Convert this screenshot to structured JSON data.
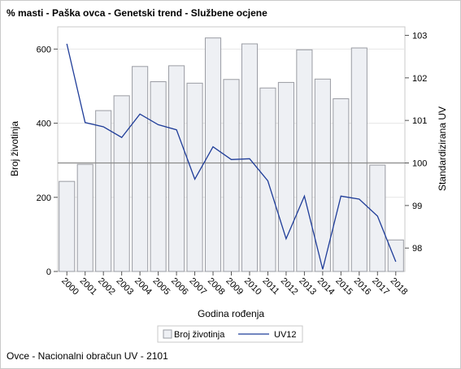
{
  "title": "% masti - Paška ovca - Genetski trend - Službene ocjene",
  "footnote": "Ovce - Nacionalni obračun UV - 2101",
  "chart_data": {
    "type": "bar",
    "categories": [
      "2000",
      "2001",
      "2002",
      "2003",
      "2004",
      "2005",
      "2006",
      "2007",
      "2008",
      "2009",
      "2010",
      "2011",
      "2012",
      "2013",
      "2014",
      "2015",
      "2016",
      "2017",
      "2018"
    ],
    "series": [
      {
        "name": "Broj životinja",
        "type": "bar",
        "axis": "left",
        "color": "#eef0f4",
        "stroke": "#9a9ca3",
        "values": [
          243,
          289,
          434,
          474,
          553,
          512,
          555,
          508,
          630,
          518,
          614,
          495,
          510,
          598,
          519,
          466,
          603,
          287,
          85
        ]
      },
      {
        "name": "UV12",
        "type": "line",
        "axis": "right",
        "color": "#1f3d99",
        "values": [
          102.8,
          100.95,
          100.85,
          100.6,
          101.15,
          100.9,
          100.78,
          99.62,
          100.38,
          100.08,
          100.1,
          99.58,
          98.22,
          99.22,
          97.5,
          99.22,
          99.15,
          98.75,
          97.68
        ]
      }
    ],
    "xlabel": "Godina rođenja",
    "ylabel": "Broj životinja",
    "y2label": "Standardizirana UV",
    "ylim": [
      0,
      660
    ],
    "yticks": [
      0,
      200,
      400,
      600
    ],
    "y2lim": [
      97.45,
      103.2
    ],
    "y2ticks": [
      98,
      99,
      100,
      101,
      102,
      103
    ],
    "reference_line": 100,
    "grid": true,
    "legend_position": "bottom"
  }
}
